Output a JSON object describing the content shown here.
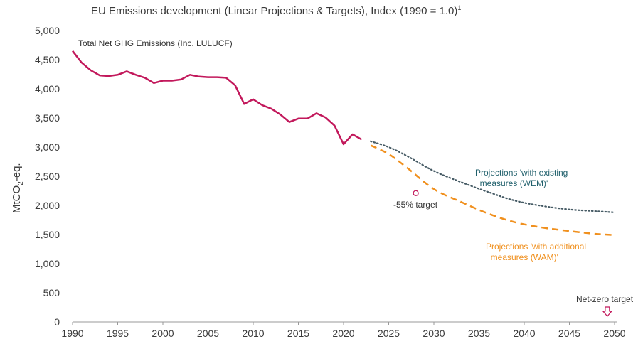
{
  "chart_data": {
    "type": "line",
    "title": "EU Emissions development (Linear Projections & Targets), Index (1990 = 1.0)",
    "title_footnote": "1",
    "ylabel": {
      "main": "MtCO",
      "sub": "2",
      "suffix": "-eq."
    },
    "xlim": [
      1990,
      2050
    ],
    "ylim": [
      0,
      5000
    ],
    "xticks": [
      1990,
      1995,
      2000,
      2005,
      2010,
      2015,
      2020,
      2025,
      2030,
      2035,
      2040,
      2045,
      2050
    ],
    "yticks": [
      0,
      500,
      1000,
      1500,
      2000,
      2500,
      3000,
      3500,
      4000,
      4500,
      5000
    ],
    "ytick_labels": [
      "0",
      "500",
      "1,000",
      "1,500",
      "2,000",
      "2,500",
      "3,000",
      "3,500",
      "4,000",
      "4,500",
      "5,000"
    ],
    "series": [
      {
        "name": "Total Net GHG Emissions (Inc. LULUCF)",
        "style": "solid",
        "color": "#c2185b",
        "x": [
          1990,
          1991,
          1992,
          1993,
          1994,
          1995,
          1996,
          1997,
          1998,
          1999,
          2000,
          2001,
          2002,
          2003,
          2004,
          2005,
          2006,
          2007,
          2008,
          2009,
          2010,
          2011,
          2012,
          2013,
          2014,
          2015,
          2016,
          2017,
          2018,
          2019,
          2020,
          2021,
          2022
        ],
        "y": [
          4650,
          4450,
          4320,
          4230,
          4220,
          4240,
          4300,
          4240,
          4190,
          4100,
          4140,
          4140,
          4160,
          4240,
          4210,
          4200,
          4200,
          4190,
          4060,
          3740,
          3820,
          3720,
          3660,
          3560,
          3430,
          3490,
          3490,
          3580,
          3510,
          3370,
          3050,
          3220,
          3130
        ]
      },
      {
        "name": "Projections 'with existing measures (WEM)'",
        "style": "dotted",
        "color": "#455a64",
        "x": [
          2023,
          2025,
          2027,
          2030,
          2033,
          2036,
          2039,
          2042,
          2045,
          2048,
          2050
        ],
        "y": [
          3100,
          3000,
          2850,
          2590,
          2400,
          2230,
          2080,
          1990,
          1930,
          1900,
          1880
        ]
      },
      {
        "name": "Projections 'with additional measures (WAM)'",
        "style": "dashed",
        "color": "#f0901e",
        "x": [
          2023,
          2025,
          2027,
          2030,
          2033,
          2036,
          2039,
          2042,
          2045,
          2048,
          2050
        ],
        "y": [
          3030,
          2880,
          2650,
          2280,
          2060,
          1860,
          1710,
          1620,
          1560,
          1510,
          1490
        ]
      }
    ],
    "markers": [
      {
        "name": "-55% target",
        "x": 2028,
        "y": 2210,
        "shape": "circle",
        "color": "#c2185b"
      },
      {
        "name": "Net-zero target",
        "x": 2049.2,
        "y": 0,
        "shape": "down-arrow",
        "color": "#c2185b"
      }
    ],
    "annotations": {
      "series1": "Total Net GHG Emissions (Inc. LULUCF)",
      "wem": "Projections 'with existing\n  measures (WEM)'",
      "wam": "Projections 'with additional\n  measures (WAM)'",
      "target55": "-55% target",
      "netzero": "Net-zero target"
    },
    "colors": {
      "axis": "#999999",
      "tick_text": "#3a3a3a",
      "wem_label": "#1f5f6b",
      "wam_label": "#f0901e"
    }
  }
}
